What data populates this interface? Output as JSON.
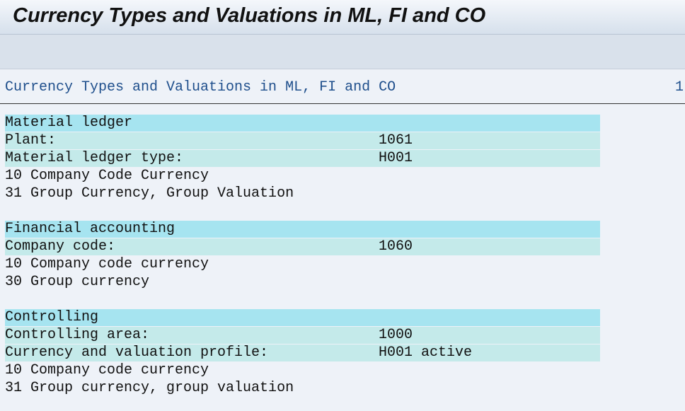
{
  "header": {
    "title": "Currency Types and Valuations in ML, FI and CO"
  },
  "list": {
    "title": "Currency Types and Valuations in ML, FI and CO",
    "page": 1,
    "sections": [
      {
        "title": "Material ledger",
        "fields": [
          {
            "label": "Plant:",
            "value": "1061"
          },
          {
            "label": "Material ledger type:",
            "value": "H001"
          }
        ],
        "lines": [
          "10 Company Code Currency",
          "31 Group Currency, Group Valuation"
        ]
      },
      {
        "title": "Financial accounting",
        "fields": [
          {
            "label": "Company code:",
            "value": "1060"
          }
        ],
        "lines": [
          "10 Company code currency",
          "30 Group currency"
        ]
      },
      {
        "title": "Controlling",
        "fields": [
          {
            "label": "Controlling area:",
            "value": "1000"
          },
          {
            "label": "Currency and valuation profile:",
            "value": "H001 active"
          }
        ],
        "lines": [
          "10 Company code currency",
          "31 Group currency, group valuation"
        ]
      }
    ]
  }
}
